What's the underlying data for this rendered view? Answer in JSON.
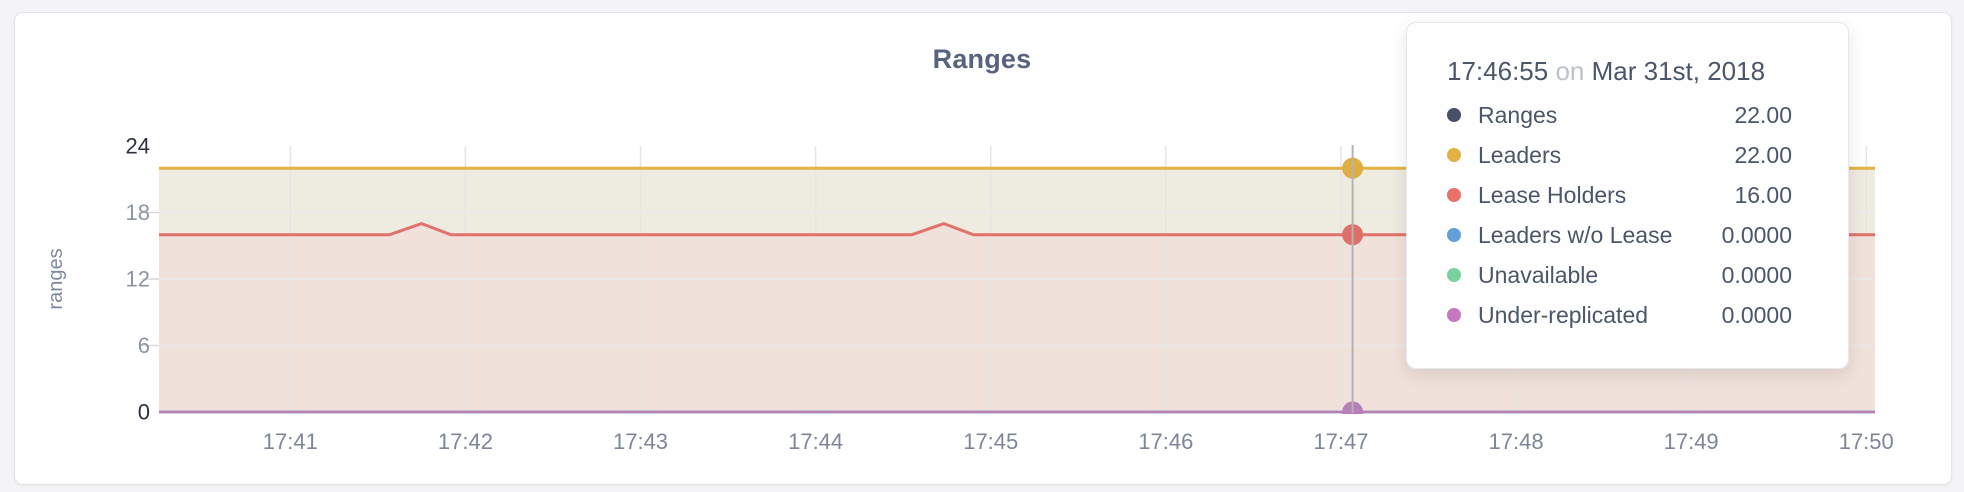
{
  "title": "Ranges",
  "colors": {
    "accent_title": "#57627e",
    "axis_minmax": "#2c3142",
    "axis_mid": "#8d94a4",
    "axis_x": "#7d8699",
    "axis_ylabel": "#7e89a0",
    "grid": "#e5e5e5",
    "hover_line": "#b3b3b3",
    "card_bg": "#ffffff",
    "page_bg": "#f4f4f6"
  },
  "chart_data": {
    "type": "area",
    "title": "Ranges",
    "xlabel": "",
    "ylabel": "ranges",
    "ylim": [
      0,
      24
    ],
    "y_ticks": [
      0,
      6,
      12,
      18,
      24
    ],
    "y_grid_values": [
      6,
      12,
      18
    ],
    "grid": true,
    "legend_position": "tooltip",
    "x_domain_seconds_after_1740": [
      15,
      603
    ],
    "x_ticks": [
      {
        "label": "17:41",
        "t": 60
      },
      {
        "label": "17:42",
        "t": 120
      },
      {
        "label": "17:43",
        "t": 180
      },
      {
        "label": "17:44",
        "t": 240
      },
      {
        "label": "17:45",
        "t": 300
      },
      {
        "label": "17:46",
        "t": 360
      },
      {
        "label": "17:47",
        "t": 420
      },
      {
        "label": "17:48",
        "t": 480
      },
      {
        "label": "17:49",
        "t": 540
      },
      {
        "label": "17:50",
        "t": 600
      }
    ],
    "series": [
      {
        "name": "Ranges",
        "color": "#49536b",
        "area": null,
        "line_width": 2.5,
        "points": [
          [
            15,
            22
          ],
          [
            603,
            22
          ]
        ]
      },
      {
        "name": "Leaders",
        "color": "#e3b243",
        "area": "#eeebe1",
        "line_width": 3,
        "points": [
          [
            15,
            22
          ],
          [
            603,
            22
          ]
        ]
      },
      {
        "name": "Lease Holders",
        "color": "#e0726b",
        "area": "#f1e1db",
        "line_width": 3,
        "points": [
          [
            15,
            16
          ],
          [
            94,
            16
          ],
          [
            105,
            17
          ],
          [
            115,
            16
          ],
          [
            273,
            16
          ],
          [
            284,
            17
          ],
          [
            294,
            16
          ],
          [
            603,
            16
          ]
        ]
      },
      {
        "name": "Leaders w/o Lease",
        "color": "#63a0d9",
        "area": null,
        "line_width": 2.5,
        "points": [
          [
            15,
            0
          ],
          [
            603,
            0
          ]
        ]
      },
      {
        "name": "Unavailable",
        "color": "#79d29e",
        "area": null,
        "line_width": 2.5,
        "points": [
          [
            15,
            0
          ],
          [
            603,
            0
          ]
        ]
      },
      {
        "name": "Under-replicated",
        "color": "#b77eb7",
        "area": null,
        "line_width": 2.5,
        "points": [
          [
            15,
            0
          ],
          [
            603,
            0
          ]
        ]
      }
    ],
    "hover": {
      "t": 424,
      "time_label": "17:46:55",
      "dots": [
        {
          "series": "Leaders",
          "value": 22,
          "color": "#dfae41"
        },
        {
          "series": "Lease Holders",
          "value": 16,
          "color": "#dd6f68"
        },
        {
          "series": "Under-replicated",
          "value": 0,
          "color": "#b77eb7"
        }
      ]
    }
  },
  "y_axis": {
    "label": "ranges"
  },
  "tooltip": {
    "time": "17:46:55",
    "conj": "on",
    "date": "Mar 31st, 2018",
    "rows": [
      {
        "label": "Ranges",
        "value": "22.00",
        "color": "#475066"
      },
      {
        "label": "Leaders",
        "value": "22.00",
        "color": "#e2b144"
      },
      {
        "label": "Lease Holders",
        "value": "16.00",
        "color": "#e8716a"
      },
      {
        "label": "Leaders w/o Lease",
        "value": "0.0000",
        "color": "#63a0d9"
      },
      {
        "label": "Unavailable",
        "value": "0.0000",
        "color": "#79d29e"
      },
      {
        "label": "Under-replicated",
        "value": "0.0000",
        "color": "#c678c0"
      }
    ]
  }
}
